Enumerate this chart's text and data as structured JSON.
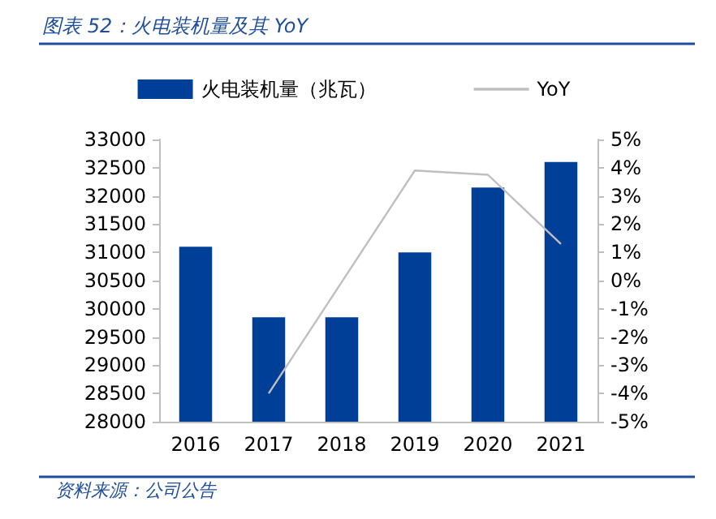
{
  "chart_data": {
    "type": "bar",
    "title": "图表 52：火电装机量及其 YoY",
    "categories": [
      "2016",
      "2017",
      "2018",
      "2019",
      "2020",
      "2021"
    ],
    "series": [
      {
        "name": "火电装机量（兆瓦）",
        "color": "#003f98",
        "values": [
          31100,
          29850,
          29850,
          31000,
          32150,
          32600
        ]
      },
      {
        "name": "YoY",
        "type": "line",
        "axis": "y2",
        "color": "#bfbfbf",
        "values": [
          null,
          -4.0,
          null,
          3.9,
          3.75,
          1.3
        ]
      }
    ],
    "ylim": [
      28000,
      33000
    ],
    "yticks": [
      28000,
      28500,
      29000,
      29500,
      30000,
      30500,
      31000,
      31500,
      32000,
      32500,
      33000
    ],
    "y2lim": [
      -5,
      5
    ],
    "y2ticks": [
      {
        "value": -5,
        "label": "-5%"
      },
      {
        "value": -4,
        "label": "-4%"
      },
      {
        "value": -3,
        "label": "-3%"
      },
      {
        "value": -2,
        "label": "-2%"
      },
      {
        "value": -1,
        "label": "-1%"
      },
      {
        "value": 0,
        "label": "0%"
      },
      {
        "value": 1,
        "label": "1%"
      },
      {
        "value": 2,
        "label": "2%"
      },
      {
        "value": 3,
        "label": "3%"
      },
      {
        "value": 4,
        "label": "4%"
      },
      {
        "value": 5,
        "label": "5%"
      }
    ],
    "annotations": [
      "资料来源：公司公告"
    ],
    "legend": "top",
    "grid": false,
    "marker": "none"
  }
}
